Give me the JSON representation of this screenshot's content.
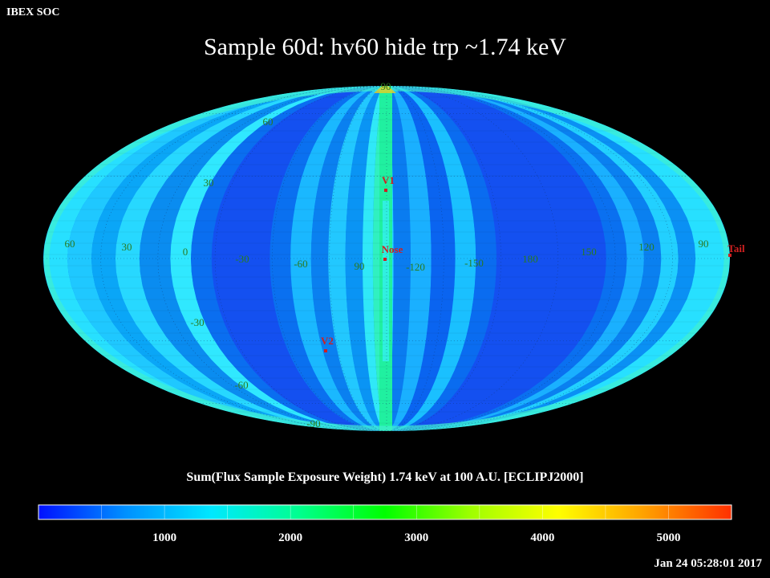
{
  "header": {
    "org_label": "IBEX SOC"
  },
  "title": "Sample 60d: hv60 hide trp ~1.74 keV",
  "projection": "mollweide",
  "map_labels": {
    "latitude": [
      "90",
      "60",
      "30",
      "-30",
      "-60",
      "-90"
    ],
    "longitude": [
      "60",
      "30",
      "0",
      "-30",
      "-60",
      "90",
      "-120",
      "-150",
      "180",
      "150",
      "120",
      "90"
    ],
    "markers": [
      {
        "label": "V1",
        "color": "#d02020"
      },
      {
        "label": "Nose",
        "color": "#d02020"
      },
      {
        "label": "V2",
        "color": "#d02020"
      },
      {
        "label": "Tail",
        "color": "#d02020"
      }
    ]
  },
  "colorbar": {
    "title": "Sum(Flux Sample Exposure Weight)  1.74 keV at 100 A.U. [ECLIPJ2000]",
    "ticks": [
      "1000",
      "2000",
      "3000",
      "4000",
      "5000"
    ],
    "range": [
      0,
      5500
    ],
    "stops": [
      "#0010ff",
      "#0090ff",
      "#00e8ff",
      "#00ff90",
      "#00ff00",
      "#a0ff00",
      "#ffff00",
      "#ffa000",
      "#ff3000"
    ]
  },
  "timestamp": "Jan 24 05:28:01 2017"
}
